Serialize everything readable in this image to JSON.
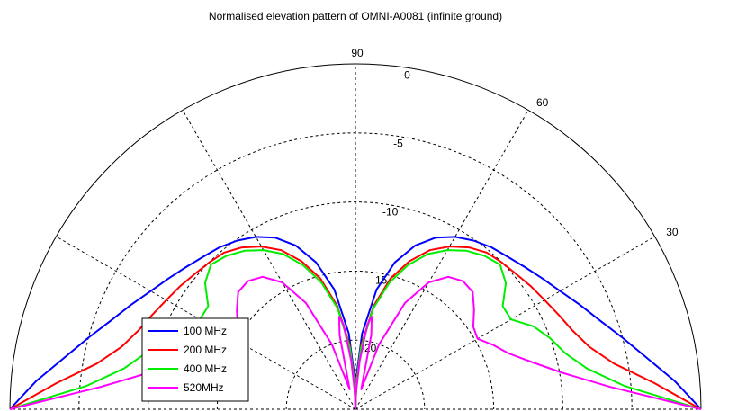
{
  "chart_data": {
    "type": "line",
    "projection": "polar-half",
    "title": "Normalised elevation pattern of OMNI-A0081 (infinite ground)",
    "radial_axis": {
      "unit": "dB",
      "range": [
        -25,
        0
      ],
      "ticks": [
        0,
        -5,
        -10,
        -15,
        -20
      ],
      "tick_labels": [
        "0",
        "-5",
        "-10",
        "-15",
        "-20"
      ]
    },
    "angular_axis": {
      "unit": "degrees",
      "range": [
        0,
        180
      ],
      "spoke_step": 30,
      "tick_labels": [
        "90",
        "60",
        "30"
      ],
      "tick_angles": [
        90,
        60,
        30
      ]
    },
    "grid": true,
    "legend": {
      "placement": "bottom-left"
    },
    "series": [
      {
        "name": "100 MHz",
        "color": "#0000ff",
        "theta": [
          0,
          5,
          10,
          15,
          20,
          25,
          30,
          35,
          40,
          45,
          50,
          55,
          60,
          65,
          70,
          75,
          80,
          85,
          88,
          90
        ],
        "r": [
          0,
          -1.8,
          -3.6,
          -5.0,
          -6.2,
          -7.1,
          -7.9,
          -8.5,
          -9.0,
          -9.4,
          -9.7,
          -10.1,
          -10.6,
          -11.3,
          -12.4,
          -14.0,
          -16.2,
          -19.5,
          -22.5,
          -25.0
        ]
      },
      {
        "name": "200 MHz",
        "color": "#ff0000",
        "theta": [
          0,
          5,
          10,
          15,
          20,
          25,
          30,
          35,
          40,
          45,
          50,
          55,
          60,
          65,
          70,
          75,
          80,
          85,
          88,
          90
        ],
        "r": [
          0,
          -3.3,
          -6.0,
          -7.5,
          -8.3,
          -8.8,
          -9.2,
          -9.5,
          -9.8,
          -10.0,
          -10.2,
          -10.7,
          -11.4,
          -12.3,
          -13.6,
          -15.2,
          -17.4,
          -20.4,
          -23.0,
          -25.0
        ]
      },
      {
        "name": "400 MHz",
        "color": "#00ee00",
        "theta": [
          0,
          5,
          10,
          15,
          20,
          25,
          30,
          35,
          40,
          45,
          50,
          55,
          60,
          65,
          70,
          75,
          80,
          85,
          88,
          90
        ],
        "r": [
          0,
          -5.5,
          -8.0,
          -9.3,
          -10.0,
          -10.8,
          -12.0,
          -12.0,
          -10.8,
          -10.2,
          -10.5,
          -11.0,
          -11.7,
          -12.6,
          -13.9,
          -15.5,
          -17.6,
          -20.6,
          -23.2,
          -25.0
        ]
      },
      {
        "name": "520MHz",
        "color": "#ff00ff",
        "theta": [
          0,
          5,
          10,
          15,
          20,
          25,
          30,
          35,
          40,
          45,
          50,
          55,
          60,
          65,
          70,
          74,
          78,
          80,
          82,
          85,
          88,
          90
        ],
        "r": [
          0,
          -6.5,
          -9.8,
          -11.8,
          -13.2,
          -14.0,
          -14.8,
          -14.6,
          -13.8,
          -13.0,
          -12.9,
          -13.3,
          -14.4,
          -16.5,
          -20.0,
          -23.5,
          -19.5,
          -18.2,
          -18.8,
          -21.5,
          -23.8,
          -25.0
        ]
      }
    ]
  }
}
